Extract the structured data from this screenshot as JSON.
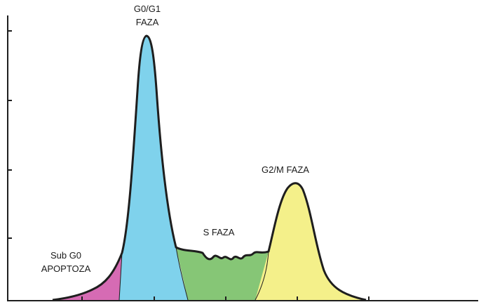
{
  "diagram": {
    "type": "cell-cycle-dna-histogram",
    "axes": {
      "x_ticks": 5,
      "y_ticks": 4
    },
    "phases": [
      {
        "id": "subg0",
        "lines": [
          "Sub G0",
          "APOPTOZA"
        ],
        "color": "#d66bb4"
      },
      {
        "id": "g0g1",
        "lines": [
          "G0/G1",
          "FAZA"
        ],
        "color": "#7fd2ec"
      },
      {
        "id": "s",
        "lines": [
          "S FAZA"
        ],
        "color": "#86c676"
      },
      {
        "id": "g2m",
        "lines": [
          "G2/M FAZA"
        ],
        "color": "#f4f08a"
      }
    ],
    "outline_color": "#1e1e1e"
  }
}
